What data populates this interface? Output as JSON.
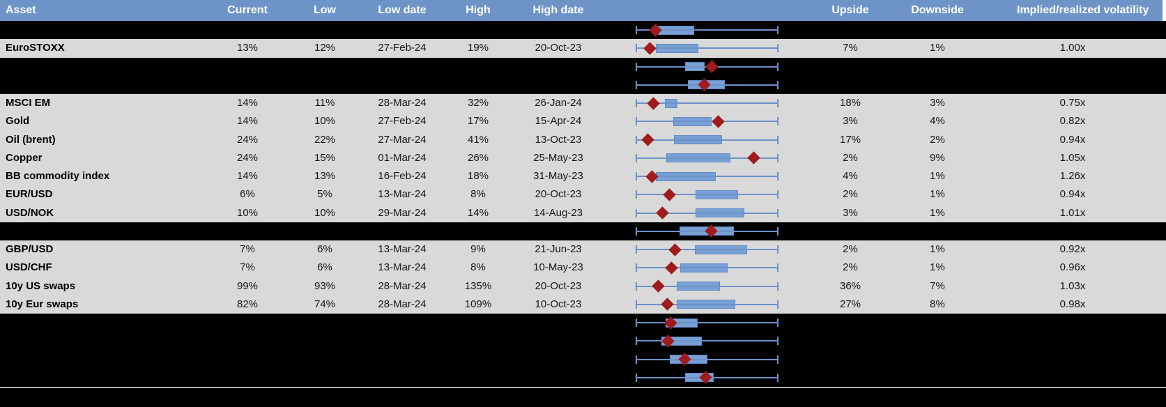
{
  "header": {
    "columns": [
      "Asset",
      "Current",
      "Low",
      "Low date",
      "High",
      "High date",
      "Upside",
      "Downside",
      "Implied/realized volatility"
    ]
  },
  "colors": {
    "header_bg": "#6E94C7",
    "row_bg": "#D9D9D9",
    "hidden_bg": "#000000",
    "box_fill": "#79A0D4",
    "box_border": "#5F8AC7",
    "whisker": "#6B91C9",
    "marker": "#A01B1B",
    "separator": "#B0B0B0"
  },
  "rows": [
    {
      "type": "hidden",
      "boxplot": {
        "box": [
          0.158,
          0.412
        ],
        "marker": 0.138
      }
    },
    {
      "type": "data",
      "asset": "EuroSTOXX",
      "current": "13%",
      "low": "12%",
      "low_date": "27-Feb-24",
      "high": "19%",
      "high_date": "20-Oct-23",
      "upside": "7%",
      "downside": "1%",
      "implied_realized": "1.00x",
      "boxplot": {
        "box": [
          0.142,
          0.441
        ],
        "marker": 0.101
      }
    },
    {
      "type": "hidden",
      "boxplot": {
        "box": [
          0.348,
          0.485
        ],
        "marker": 0.532
      }
    },
    {
      "type": "hidden",
      "boxplot": {
        "box": [
          0.368,
          0.622
        ],
        "marker": 0.48
      }
    },
    {
      "type": "data",
      "asset": "MSCI EM",
      "current": "14%",
      "low": "11%",
      "low_date": "28-Mar-24",
      "high": "32%",
      "high_date": "26-Jan-24",
      "upside": "18%",
      "downside": "3%",
      "implied_realized": "0.75x",
      "boxplot": {
        "box": [
          0.207,
          0.291
        ],
        "marker": 0.122
      }
    },
    {
      "type": "data",
      "asset": "Gold",
      "current": "14%",
      "low": "10%",
      "low_date": "27-Feb-24",
      "high": "17%",
      "high_date": "15-Apr-24",
      "upside": "3%",
      "downside": "4%",
      "implied_realized": "0.82x",
      "boxplot": {
        "box": [
          0.264,
          0.534
        ],
        "marker": 0.578
      }
    },
    {
      "type": "data",
      "asset": "Oil (brent)",
      "current": "24%",
      "low": "22%",
      "low_date": "27-Mar-24",
      "high": "41%",
      "high_date": "13-Oct-23",
      "upside": "17%",
      "downside": "2%",
      "implied_realized": "0.94x",
      "boxplot": {
        "box": [
          0.267,
          0.605
        ],
        "marker": 0.085
      }
    },
    {
      "type": "data",
      "asset": "Copper",
      "current": "24%",
      "low": "15%",
      "low_date": "01-Mar-24",
      "high": "26%",
      "high_date": "25-May-23",
      "upside": "2%",
      "downside": "9%",
      "implied_realized": "1.05x",
      "boxplot": {
        "box": [
          0.215,
          0.662
        ],
        "marker": 0.825
      }
    },
    {
      "type": "data",
      "asset": "BB commodity index",
      "current": "14%",
      "low": "13%",
      "low_date": "16-Feb-24",
      "high": "18%",
      "high_date": "31-May-23",
      "upside": "4%",
      "downside": "1%",
      "implied_realized": "1.26x",
      "boxplot": {
        "box": [
          0.142,
          0.562
        ],
        "marker": 0.114
      }
    },
    {
      "type": "data",
      "asset": "EUR/USD",
      "current": "6%",
      "low": "5%",
      "low_date": "13-Mar-24",
      "high": "8%",
      "high_date": "20-Oct-23",
      "upside": "2%",
      "downside": "1%",
      "implied_realized": "0.94x",
      "boxplot": {
        "box": [
          0.418,
          0.716
        ],
        "marker": 0.239
      }
    },
    {
      "type": "data",
      "asset": "USD/NOK",
      "current": "10%",
      "low": "10%",
      "low_date": "29-Mar-24",
      "high": "14%",
      "high_date": "14-Aug-23",
      "upside": "3%",
      "downside": "1%",
      "implied_realized": "1.01x",
      "boxplot": {
        "box": [
          0.418,
          0.76
        ],
        "marker": 0.187
      }
    },
    {
      "type": "hidden",
      "boxplot": {
        "box": [
          0.309,
          0.687
        ],
        "marker": 0.529
      }
    },
    {
      "type": "data",
      "asset": "GBP/USD",
      "current": "7%",
      "low": "6%",
      "low_date": "13-Mar-24",
      "high": "9%",
      "high_date": "21-Jun-23",
      "upside": "2%",
      "downside": "1%",
      "implied_realized": "0.92x",
      "boxplot": {
        "box": [
          0.415,
          0.781
        ],
        "marker": 0.276
      }
    },
    {
      "type": "data",
      "asset": "USD/CHF",
      "current": "7%",
      "low": "6%",
      "low_date": "13-Mar-24",
      "high": "8%",
      "high_date": "10-May-23",
      "upside": "2%",
      "downside": "1%",
      "implied_realized": "0.96x",
      "boxplot": {
        "box": [
          0.313,
          0.646
        ],
        "marker": 0.252
      }
    },
    {
      "type": "data",
      "asset": "10y US swaps",
      "current": "99%",
      "low": "93%",
      "low_date": "28-Mar-24",
      "high": "135%",
      "high_date": "20-Oct-23",
      "upside": "36%",
      "downside": "7%",
      "implied_realized": "1.03x",
      "boxplot": {
        "box": [
          0.288,
          0.589
        ],
        "marker": 0.158
      }
    },
    {
      "type": "data",
      "asset": "10y Eur swaps",
      "current": "82%",
      "low": "74%",
      "low_date": "28-Mar-24",
      "high": "109%",
      "high_date": "10-Oct-23",
      "upside": "27%",
      "downside": "8%",
      "implied_realized": "0.98x",
      "boxplot": {
        "box": [
          0.288,
          0.698
        ],
        "marker": 0.223
      }
    },
    {
      "type": "hidden",
      "boxplot": {
        "box": [
          0.211,
          0.434
        ],
        "marker": 0.244
      }
    },
    {
      "type": "hidden",
      "boxplot": {
        "box": [
          0.182,
          0.464
        ],
        "marker": 0.226
      }
    },
    {
      "type": "hidden",
      "boxplot": {
        "box": [
          0.239,
          0.503
        ],
        "marker": 0.345
      }
    },
    {
      "type": "hidden",
      "boxplot": {
        "box": [
          0.345,
          0.548
        ],
        "marker": 0.491
      }
    }
  ],
  "chart_data": {
    "type": "boxplot",
    "orientation": "horizontal",
    "note": "Each row's whiskers span the full low-high range (normalized 0-1); box = interquartile band; red diamond = current level",
    "x_range": [
      0,
      1
    ],
    "series": [
      {
        "name": null,
        "box": [
          0.158,
          0.412
        ],
        "whiskers": [
          0,
          1
        ],
        "marker": 0.138
      },
      {
        "name": "EuroSTOXX",
        "box": [
          0.142,
          0.441
        ],
        "whiskers": [
          0,
          1
        ],
        "marker": 0.101
      },
      {
        "name": null,
        "box": [
          0.348,
          0.485
        ],
        "whiskers": [
          0,
          1
        ],
        "marker": 0.532
      },
      {
        "name": null,
        "box": [
          0.368,
          0.622
        ],
        "whiskers": [
          0,
          1
        ],
        "marker": 0.48
      },
      {
        "name": "MSCI EM",
        "box": [
          0.207,
          0.291
        ],
        "whiskers": [
          0,
          1
        ],
        "marker": 0.122
      },
      {
        "name": "Gold",
        "box": [
          0.264,
          0.534
        ],
        "whiskers": [
          0,
          1
        ],
        "marker": 0.578
      },
      {
        "name": "Oil (brent)",
        "box": [
          0.267,
          0.605
        ],
        "whiskers": [
          0,
          1
        ],
        "marker": 0.085
      },
      {
        "name": "Copper",
        "box": [
          0.215,
          0.662
        ],
        "whiskers": [
          0,
          1
        ],
        "marker": 0.825
      },
      {
        "name": "BB commodity index",
        "box": [
          0.142,
          0.562
        ],
        "whiskers": [
          0,
          1
        ],
        "marker": 0.114
      },
      {
        "name": "EUR/USD",
        "box": [
          0.418,
          0.716
        ],
        "whiskers": [
          0,
          1
        ],
        "marker": 0.239
      },
      {
        "name": "USD/NOK",
        "box": [
          0.418,
          0.76
        ],
        "whiskers": [
          0,
          1
        ],
        "marker": 0.187
      },
      {
        "name": null,
        "box": [
          0.309,
          0.687
        ],
        "whiskers": [
          0,
          1
        ],
        "marker": 0.529
      },
      {
        "name": "GBP/USD",
        "box": [
          0.415,
          0.781
        ],
        "whiskers": [
          0,
          1
        ],
        "marker": 0.276
      },
      {
        "name": "USD/CHF",
        "box": [
          0.313,
          0.646
        ],
        "whiskers": [
          0,
          1
        ],
        "marker": 0.252
      },
      {
        "name": "10y US swaps",
        "box": [
          0.288,
          0.589
        ],
        "whiskers": [
          0,
          1
        ],
        "marker": 0.158
      },
      {
        "name": "10y Eur swaps",
        "box": [
          0.288,
          0.698
        ],
        "whiskers": [
          0,
          1
        ],
        "marker": 0.223
      },
      {
        "name": null,
        "box": [
          0.211,
          0.434
        ],
        "whiskers": [
          0,
          1
        ],
        "marker": 0.244
      },
      {
        "name": null,
        "box": [
          0.182,
          0.464
        ],
        "whiskers": [
          0,
          1
        ],
        "marker": 0.226
      },
      {
        "name": null,
        "box": [
          0.239,
          0.503
        ],
        "whiskers": [
          0,
          1
        ],
        "marker": 0.345
      },
      {
        "name": null,
        "box": [
          0.345,
          0.548
        ],
        "whiskers": [
          0,
          1
        ],
        "marker": 0.491
      }
    ]
  }
}
